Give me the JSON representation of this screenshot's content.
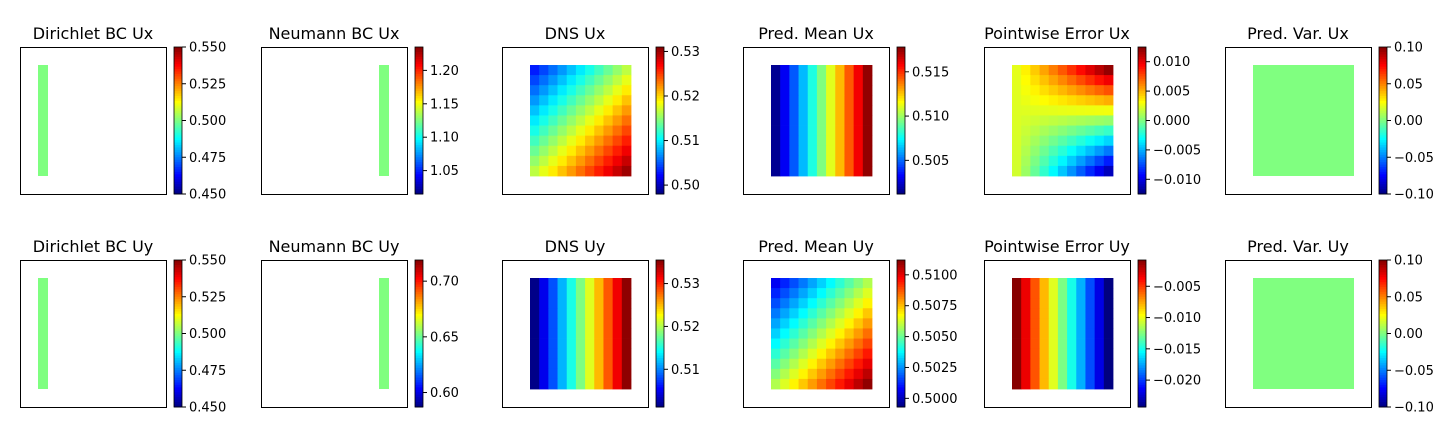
{
  "chart_data": {
    "type": "heatmap",
    "colormap": "jet",
    "grid": false,
    "panels": [
      {
        "title": "Dirichlet BC Ux",
        "kind": "bc-left",
        "ylim": [
          0.45,
          0.55
        ],
        "ticks": [
          "0.450",
          "0.475",
          "0.500",
          "0.525",
          "0.550"
        ],
        "value": 0.5
      },
      {
        "title": "Neumann BC Ux",
        "kind": "bc-right",
        "ylim": [
          1.015,
          1.235
        ],
        "ticks": [
          "1.05",
          "1.10",
          "1.15",
          "1.20"
        ],
        "value": 1.125
      },
      {
        "title": "DNS Ux",
        "kind": "field",
        "pattern": "diag",
        "ylim": [
          0.498,
          0.531
        ],
        "ticks": [
          "0.50",
          "0.51",
          "0.52",
          "0.53"
        ],
        "range": [
          0.5,
          0.53
        ]
      },
      {
        "title": "Pred. Mean Ux",
        "kind": "field",
        "pattern": "x",
        "ylim": [
          0.5012,
          0.5178
        ],
        "ticks": [
          "0.505",
          "0.510",
          "0.515"
        ],
        "range": [
          0.5015,
          0.5175
        ]
      },
      {
        "title": "Pointwise Error Ux",
        "kind": "field",
        "pattern": "error-ux",
        "ylim": [
          -0.0125,
          0.0125
        ],
        "ticks": [
          "−0.010",
          "−0.005",
          "0.000",
          "0.005",
          "0.010"
        ],
        "range": [
          -0.0125,
          0.0125
        ]
      },
      {
        "title": "Pred. Var. Ux",
        "kind": "const",
        "ylim": [
          -0.1,
          0.1
        ],
        "ticks": [
          "−0.10",
          "−0.05",
          "0.00",
          "0.05",
          "0.10"
        ],
        "value": 0.0
      },
      {
        "title": "Dirichlet BC Uy",
        "kind": "bc-left",
        "ylim": [
          0.45,
          0.55
        ],
        "ticks": [
          "0.450",
          "0.475",
          "0.500",
          "0.525",
          "0.550"
        ],
        "value": 0.5
      },
      {
        "title": "Neumann BC Uy",
        "kind": "bc-right",
        "ylim": [
          0.587,
          0.719
        ],
        "ticks": [
          "0.60",
          "0.65",
          "0.70"
        ],
        "value": 0.653
      },
      {
        "title": "DNS Uy",
        "kind": "field",
        "pattern": "x",
        "ylim": [
          0.5012,
          0.5355
        ],
        "ticks": [
          "0.51",
          "0.52",
          "0.53"
        ],
        "range": [
          0.5015,
          0.535
        ]
      },
      {
        "title": "Pred. Mean Uy",
        "kind": "field",
        "pattern": "diag",
        "ylim": [
          0.4993,
          0.5112
        ],
        "ticks": [
          "0.5000",
          "0.5025",
          "0.5050",
          "0.5075",
          "0.5100"
        ],
        "range": [
          0.4995,
          0.511
        ]
      },
      {
        "title": "Pointwise Error Uy",
        "kind": "field",
        "pattern": "error-uy",
        "ylim": [
          -0.0243,
          -0.0008
        ],
        "ticks": [
          "−0.005",
          "−0.010",
          "−0.015",
          "−0.020"
        ],
        "range": [
          -0.0243,
          -0.001
        ]
      },
      {
        "title": "Pred. Var. Uy",
        "kind": "const",
        "ylim": [
          -0.1,
          0.1
        ],
        "ticks": [
          "−0.10",
          "−0.05",
          "0.00",
          "0.05",
          "0.10"
        ],
        "value": 0.0
      }
    ]
  }
}
